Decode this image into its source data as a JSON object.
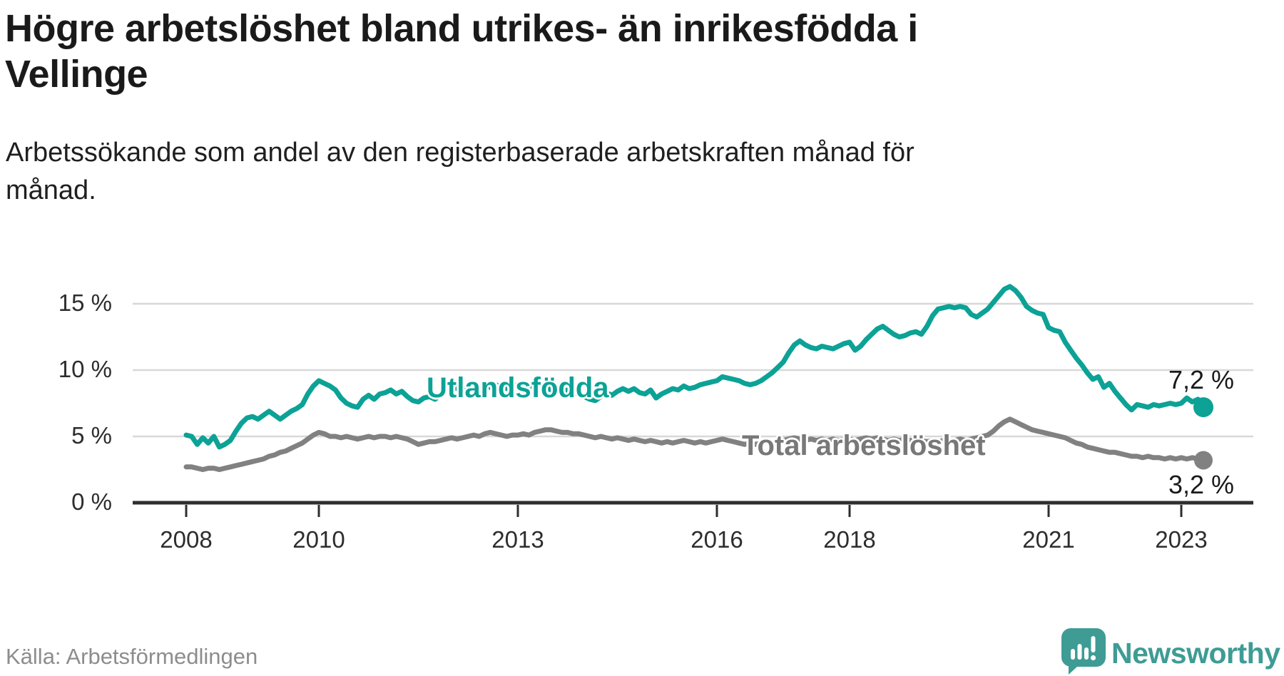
{
  "header": {
    "title_lines": [
      "Högre arbetslöshet bland utrikes- än inrikesfödda i",
      "Vellinge"
    ],
    "subtitle_lines": [
      "Arbetssökande som andel av den registerbaserade arbetskraften månad för",
      "månad."
    ]
  },
  "footer": {
    "source": "Källa: Arbetsförmedlingen",
    "brand_name": "Newsworthy",
    "brand_color": "#3e9c95"
  },
  "chart_data": {
    "type": "line",
    "title": "Högre arbetslöshet bland utrikes- än inrikesfödda i Vellinge",
    "subtitle": "Arbetssökande som andel av den registerbaserade arbetskraften månad för månad.",
    "source": "Källa: Arbetsförmedlingen",
    "x_start": "2008-01",
    "x_end": "2023-05",
    "x_frequency": "monthly",
    "ylim": [
      0,
      17.5
    ],
    "grid": true,
    "legend_position": "inline-labels",
    "y_ticks": [
      {
        "value": 0,
        "label": "0 %"
      },
      {
        "value": 5,
        "label": "5 %"
      },
      {
        "value": 10,
        "label": "10 %"
      },
      {
        "value": 15,
        "label": "15 %"
      }
    ],
    "x_ticks": [
      {
        "year": 2008,
        "label": "2008"
      },
      {
        "year": 2010,
        "label": "2010"
      },
      {
        "year": 2013,
        "label": "2013"
      },
      {
        "year": 2016,
        "label": "2016"
      },
      {
        "year": 2018,
        "label": "2018"
      },
      {
        "year": 2021,
        "label": "2021"
      },
      {
        "year": 2023,
        "label": "2023"
      }
    ],
    "series": [
      {
        "name": "Utlandsfödda",
        "color": "#0ca296",
        "end_label": "7,2 %",
        "end_value": 7.2,
        "values": [
          5.1,
          5.0,
          4.4,
          4.9,
          4.5,
          5.0,
          4.2,
          4.4,
          4.7,
          5.4,
          6.0,
          6.4,
          6.5,
          6.3,
          6.6,
          6.9,
          6.6,
          6.3,
          6.6,
          6.9,
          7.1,
          7.4,
          8.2,
          8.8,
          9.2,
          9.0,
          8.8,
          8.5,
          7.9,
          7.5,
          7.3,
          7.2,
          7.8,
          8.1,
          7.8,
          8.2,
          8.3,
          8.5,
          8.2,
          8.4,
          8.0,
          7.7,
          7.6,
          7.9,
          8.0,
          7.8,
          8.1,
          8.5,
          8.7,
          8.6,
          8.5,
          8.6,
          8.8,
          8.6,
          8.9,
          8.7,
          8.9,
          8.7,
          8.6,
          8.8,
          8.9,
          8.8,
          8.9,
          8.7,
          8.6,
          8.7,
          8.5,
          8.6,
          8.4,
          8.5,
          8.3,
          8.2,
          8.0,
          7.8,
          7.7,
          8.0,
          8.3,
          8.1,
          8.4,
          8.6,
          8.4,
          8.6,
          8.3,
          8.2,
          8.5,
          7.9,
          8.2,
          8.4,
          8.6,
          8.5,
          8.8,
          8.6,
          8.7,
          8.9,
          9.0,
          9.1,
          9.2,
          9.5,
          9.4,
          9.3,
          9.2,
          9.0,
          8.9,
          9.0,
          9.2,
          9.5,
          9.8,
          10.2,
          10.6,
          11.3,
          11.9,
          12.2,
          11.9,
          11.7,
          11.6,
          11.8,
          11.7,
          11.6,
          11.8,
          12.0,
          12.1,
          11.5,
          11.8,
          12.3,
          12.7,
          13.1,
          13.3,
          13.0,
          12.7,
          12.5,
          12.6,
          12.8,
          12.9,
          12.7,
          13.3,
          14.1,
          14.6,
          14.7,
          14.8,
          14.7,
          14.8,
          14.7,
          14.2,
          14.0,
          14.3,
          14.6,
          15.1,
          15.6,
          16.1,
          16.3,
          16.0,
          15.5,
          14.8,
          14.5,
          14.3,
          14.2,
          13.2,
          13.0,
          12.9,
          12.1,
          11.5,
          10.9,
          10.4,
          9.8,
          9.3,
          9.5,
          8.7,
          9.0,
          8.4,
          7.9,
          7.4,
          7.0,
          7.4,
          7.3,
          7.2,
          7.4,
          7.3,
          7.4,
          7.5,
          7.4,
          7.5,
          7.9,
          7.6,
          7.8,
          7.2
        ]
      },
      {
        "name": "Total arbetslöshet",
        "color": "#818181",
        "end_label": "3,2 %",
        "end_value": 3.2,
        "values": [
          2.7,
          2.7,
          2.6,
          2.5,
          2.6,
          2.6,
          2.5,
          2.6,
          2.7,
          2.8,
          2.9,
          3.0,
          3.1,
          3.2,
          3.3,
          3.5,
          3.6,
          3.8,
          3.9,
          4.1,
          4.3,
          4.5,
          4.8,
          5.1,
          5.3,
          5.2,
          5.0,
          5.0,
          4.9,
          5.0,
          4.9,
          4.8,
          4.9,
          5.0,
          4.9,
          5.0,
          5.0,
          4.9,
          5.0,
          4.9,
          4.8,
          4.6,
          4.4,
          4.5,
          4.6,
          4.6,
          4.7,
          4.8,
          4.9,
          4.8,
          4.9,
          5.0,
          5.1,
          5.0,
          5.2,
          5.3,
          5.2,
          5.1,
          5.0,
          5.1,
          5.1,
          5.2,
          5.1,
          5.3,
          5.4,
          5.5,
          5.5,
          5.4,
          5.3,
          5.3,
          5.2,
          5.2,
          5.1,
          5.0,
          4.9,
          5.0,
          4.9,
          4.8,
          4.9,
          4.8,
          4.7,
          4.8,
          4.7,
          4.6,
          4.7,
          4.6,
          4.5,
          4.6,
          4.5,
          4.6,
          4.7,
          4.6,
          4.5,
          4.6,
          4.5,
          4.6,
          4.7,
          4.8,
          4.7,
          4.6,
          4.5,
          4.4,
          4.5,
          4.4,
          4.5,
          4.6,
          4.5,
          4.6,
          4.7,
          4.8,
          4.9,
          4.8,
          4.7,
          4.8,
          4.7,
          4.8,
          4.7,
          4.8,
          4.7,
          4.8,
          4.8,
          4.7,
          4.8,
          4.9,
          4.8,
          4.9,
          4.8,
          4.7,
          4.8,
          4.7,
          4.8,
          4.7,
          4.8,
          4.7,
          4.6,
          4.7,
          4.6,
          4.7,
          4.6,
          4.7,
          4.8,
          4.7,
          4.8,
          4.9,
          5.0,
          5.1,
          5.4,
          5.8,
          6.1,
          6.3,
          6.1,
          5.9,
          5.7,
          5.5,
          5.4,
          5.3,
          5.2,
          5.1,
          5.0,
          4.9,
          4.7,
          4.5,
          4.4,
          4.2,
          4.1,
          4.0,
          3.9,
          3.8,
          3.8,
          3.7,
          3.6,
          3.5,
          3.5,
          3.4,
          3.5,
          3.4,
          3.4,
          3.3,
          3.4,
          3.3,
          3.4,
          3.3,
          3.4,
          3.3,
          3.2
        ]
      }
    ],
    "annotations": {
      "series_label_1": "Utlandsfödda",
      "series_label_2": "Total arbetslöshet",
      "end_label_1": "7,2 %",
      "end_label_2": "3,2 %"
    },
    "colors": {
      "grid": "#d8d8d8",
      "axis": "#2e2e2e",
      "tick_text": "#2d2d2d",
      "series1": "#0ca296",
      "series2": "#818181",
      "series2_label_text": "#787878"
    }
  }
}
